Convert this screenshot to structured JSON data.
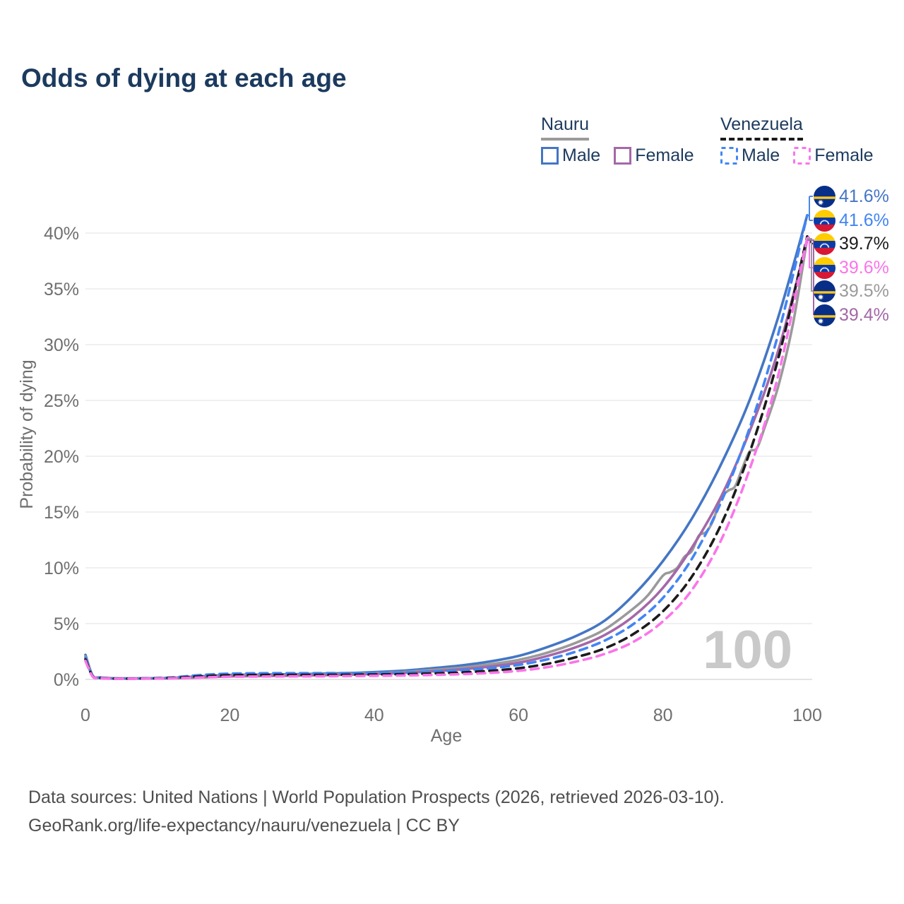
{
  "title": "Odds of dying at each age",
  "watermark": "100",
  "legend": {
    "groups": [
      {
        "country": "Nauru",
        "line_style": "solid",
        "line_color": "#9a9a9a",
        "items": [
          {
            "label": "Male",
            "color": "#4476c4",
            "dashed": false
          },
          {
            "label": "Female",
            "color": "#a468a8",
            "dashed": false
          }
        ]
      },
      {
        "country": "Venezuela",
        "line_style": "dashed",
        "line_color": "#1b1b1b",
        "items": [
          {
            "label": "Male",
            "color": "#4285f4",
            "dashed": true
          },
          {
            "label": "Female",
            "color": "#fb74ea",
            "dashed": true
          }
        ]
      }
    ]
  },
  "axes": {
    "x": {
      "label": "Age",
      "ticks": [
        0,
        20,
        40,
        60,
        80,
        100
      ]
    },
    "y": {
      "label": "Probability of dying",
      "ticks": [
        "0%",
        "5%",
        "10%",
        "15%",
        "20%",
        "25%",
        "30%",
        "35%",
        "40%"
      ]
    }
  },
  "end_labels": [
    {
      "flag": "nauru",
      "value": "41.6%",
      "color": "#4476c4",
      "series": "nauru-male"
    },
    {
      "flag": "venezuela",
      "value": "41.6%",
      "color": "#4285f4",
      "series": "venezuela-male"
    },
    {
      "flag": "venezuela",
      "value": "39.7%",
      "color": "#1b1b1b",
      "series": "venezuela-all"
    },
    {
      "flag": "venezuela",
      "value": "39.6%",
      "color": "#fb74ea",
      "series": "venezuela-female"
    },
    {
      "flag": "nauru",
      "value": "39.5%",
      "color": "#9a9a9a",
      "series": "nauru-all"
    },
    {
      "flag": "nauru",
      "value": "39.4%",
      "color": "#a468a8",
      "series": "nauru-female"
    }
  ],
  "footer": {
    "line1": "Data sources: United Nations | World Population Prospects (2026, retrieved 2026-03-10).",
    "line2": "GeoRank.org/life-expectancy/nauru/venezuela | CC BY"
  },
  "chart_data": {
    "type": "line",
    "title": "Odds of dying at each age",
    "xlabel": "Age",
    "ylabel": "Probability of dying",
    "xlim": [
      0,
      100
    ],
    "ylim_percent": [
      0,
      42
    ],
    "grid": true,
    "legend_position": "top-right",
    "series": [
      {
        "id": "nauru-male",
        "name": "Nauru Male",
        "country": "Nauru",
        "sex": "male",
        "color": "#4476c4",
        "dashed": false,
        "end_value_percent": 41.6,
        "points": [
          [
            0,
            2.2
          ],
          [
            1,
            0.35
          ],
          [
            2,
            0.18
          ],
          [
            4,
            0.1
          ],
          [
            8,
            0.1
          ],
          [
            12,
            0.14
          ],
          [
            16,
            0.28
          ],
          [
            20,
            0.4
          ],
          [
            24,
            0.43
          ],
          [
            28,
            0.46
          ],
          [
            32,
            0.5
          ],
          [
            36,
            0.56
          ],
          [
            40,
            0.65
          ],
          [
            44,
            0.78
          ],
          [
            48,
            1.0
          ],
          [
            52,
            1.25
          ],
          [
            56,
            1.6
          ],
          [
            60,
            2.1
          ],
          [
            64,
            2.9
          ],
          [
            68,
            3.9
          ],
          [
            72,
            5.3
          ],
          [
            76,
            7.6
          ],
          [
            80,
            10.6
          ],
          [
            84,
            14.4
          ],
          [
            88,
            19.2
          ],
          [
            92,
            25.0
          ],
          [
            96,
            32.5
          ],
          [
            100,
            41.6
          ]
        ]
      },
      {
        "id": "nauru-all",
        "name": "Nauru (both sexes)",
        "country": "Nauru",
        "sex": "all",
        "color": "#9a9a9a",
        "dashed": false,
        "end_value_percent": 39.5,
        "points": [
          [
            0,
            2.05
          ],
          [
            1,
            0.33
          ],
          [
            2,
            0.16
          ],
          [
            4,
            0.09
          ],
          [
            8,
            0.09
          ],
          [
            12,
            0.12
          ],
          [
            16,
            0.22
          ],
          [
            20,
            0.33
          ],
          [
            24,
            0.36
          ],
          [
            28,
            0.39
          ],
          [
            32,
            0.43
          ],
          [
            36,
            0.48
          ],
          [
            40,
            0.56
          ],
          [
            44,
            0.67
          ],
          [
            48,
            0.85
          ],
          [
            52,
            1.05
          ],
          [
            56,
            1.35
          ],
          [
            60,
            1.75
          ],
          [
            64,
            2.4
          ],
          [
            68,
            3.3
          ],
          [
            72,
            4.5
          ],
          [
            76,
            6.4
          ],
          [
            78,
            7.6
          ],
          [
            80,
            9.3
          ],
          [
            81,
            9.6
          ],
          [
            82,
            10.0
          ],
          [
            83,
            11.0
          ],
          [
            84,
            11.5
          ],
          [
            85,
            12.9
          ],
          [
            86,
            13.2
          ],
          [
            87,
            14.3
          ],
          [
            88,
            16.2
          ],
          [
            89,
            16.9
          ],
          [
            90,
            17.3
          ],
          [
            91,
            18.9
          ],
          [
            92,
            20.4
          ],
          [
            93,
            20.7
          ],
          [
            94,
            22.4
          ],
          [
            96,
            26.3
          ],
          [
            98,
            31.8
          ],
          [
            100,
            39.5
          ]
        ]
      },
      {
        "id": "nauru-female",
        "name": "Nauru Female",
        "country": "Nauru",
        "sex": "female",
        "color": "#a468a8",
        "dashed": false,
        "end_value_percent": 39.4,
        "points": [
          [
            0,
            1.9
          ],
          [
            1,
            0.3
          ],
          [
            2,
            0.15
          ],
          [
            4,
            0.08
          ],
          [
            8,
            0.08
          ],
          [
            12,
            0.11
          ],
          [
            16,
            0.18
          ],
          [
            20,
            0.27
          ],
          [
            24,
            0.3
          ],
          [
            28,
            0.33
          ],
          [
            32,
            0.37
          ],
          [
            36,
            0.42
          ],
          [
            40,
            0.49
          ],
          [
            44,
            0.58
          ],
          [
            48,
            0.72
          ],
          [
            52,
            0.9
          ],
          [
            56,
            1.15
          ],
          [
            60,
            1.5
          ],
          [
            64,
            2.1
          ],
          [
            68,
            2.9
          ],
          [
            72,
            4.0
          ],
          [
            76,
            5.7
          ],
          [
            80,
            8.2
          ],
          [
            84,
            11.8
          ],
          [
            88,
            16.3
          ],
          [
            92,
            22.2
          ],
          [
            96,
            29.5
          ],
          [
            100,
            39.4
          ]
        ]
      },
      {
        "id": "venezuela-male",
        "name": "Venezuela Male",
        "country": "Venezuela",
        "sex": "male",
        "color": "#4285f4",
        "dashed": true,
        "end_value_percent": 41.6,
        "points": [
          [
            0,
            1.95
          ],
          [
            1,
            0.3
          ],
          [
            2,
            0.14
          ],
          [
            4,
            0.08
          ],
          [
            8,
            0.09
          ],
          [
            12,
            0.18
          ],
          [
            16,
            0.4
          ],
          [
            20,
            0.52
          ],
          [
            24,
            0.55
          ],
          [
            28,
            0.56
          ],
          [
            32,
            0.56
          ],
          [
            36,
            0.57
          ],
          [
            40,
            0.58
          ],
          [
            44,
            0.62
          ],
          [
            48,
            0.7
          ],
          [
            52,
            0.82
          ],
          [
            56,
            1.0
          ],
          [
            60,
            1.3
          ],
          [
            64,
            1.8
          ],
          [
            68,
            2.5
          ],
          [
            72,
            3.5
          ],
          [
            76,
            5.0
          ],
          [
            80,
            7.3
          ],
          [
            84,
            10.8
          ],
          [
            88,
            15.8
          ],
          [
            92,
            22.5
          ],
          [
            96,
            31.0
          ],
          [
            100,
            41.6
          ]
        ]
      },
      {
        "id": "venezuela-all",
        "name": "Venezuela (both sexes)",
        "country": "Venezuela",
        "sex": "all",
        "color": "#1b1b1b",
        "dashed": true,
        "end_value_percent": 39.7,
        "points": [
          [
            0,
            1.8
          ],
          [
            1,
            0.28
          ],
          [
            2,
            0.13
          ],
          [
            4,
            0.07
          ],
          [
            8,
            0.08
          ],
          [
            12,
            0.14
          ],
          [
            16,
            0.28
          ],
          [
            20,
            0.38
          ],
          [
            24,
            0.4
          ],
          [
            28,
            0.41
          ],
          [
            32,
            0.41
          ],
          [
            36,
            0.42
          ],
          [
            40,
            0.44
          ],
          [
            44,
            0.47
          ],
          [
            48,
            0.53
          ],
          [
            52,
            0.62
          ],
          [
            56,
            0.77
          ],
          [
            60,
            1.0
          ],
          [
            64,
            1.4
          ],
          [
            68,
            2.0
          ],
          [
            72,
            2.8
          ],
          [
            76,
            4.1
          ],
          [
            80,
            6.1
          ],
          [
            84,
            9.2
          ],
          [
            88,
            13.8
          ],
          [
            92,
            20.3
          ],
          [
            96,
            28.8
          ],
          [
            100,
            39.7
          ]
        ]
      },
      {
        "id": "venezuela-female",
        "name": "Venezuela Female",
        "country": "Venezuela",
        "sex": "female",
        "color": "#fb74ea",
        "dashed": true,
        "end_value_percent": 39.6,
        "points": [
          [
            0,
            1.65
          ],
          [
            1,
            0.25
          ],
          [
            2,
            0.12
          ],
          [
            4,
            0.06
          ],
          [
            8,
            0.07
          ],
          [
            12,
            0.1
          ],
          [
            16,
            0.17
          ],
          [
            20,
            0.24
          ],
          [
            24,
            0.26
          ],
          [
            28,
            0.27
          ],
          [
            32,
            0.28
          ],
          [
            36,
            0.3
          ],
          [
            40,
            0.32
          ],
          [
            44,
            0.35
          ],
          [
            48,
            0.4
          ],
          [
            52,
            0.47
          ],
          [
            56,
            0.58
          ],
          [
            60,
            0.77
          ],
          [
            64,
            1.1
          ],
          [
            68,
            1.6
          ],
          [
            72,
            2.3
          ],
          [
            76,
            3.4
          ],
          [
            80,
            5.2
          ],
          [
            84,
            8.0
          ],
          [
            88,
            12.4
          ],
          [
            92,
            18.8
          ],
          [
            96,
            27.3
          ],
          [
            100,
            39.6
          ]
        ]
      }
    ]
  }
}
